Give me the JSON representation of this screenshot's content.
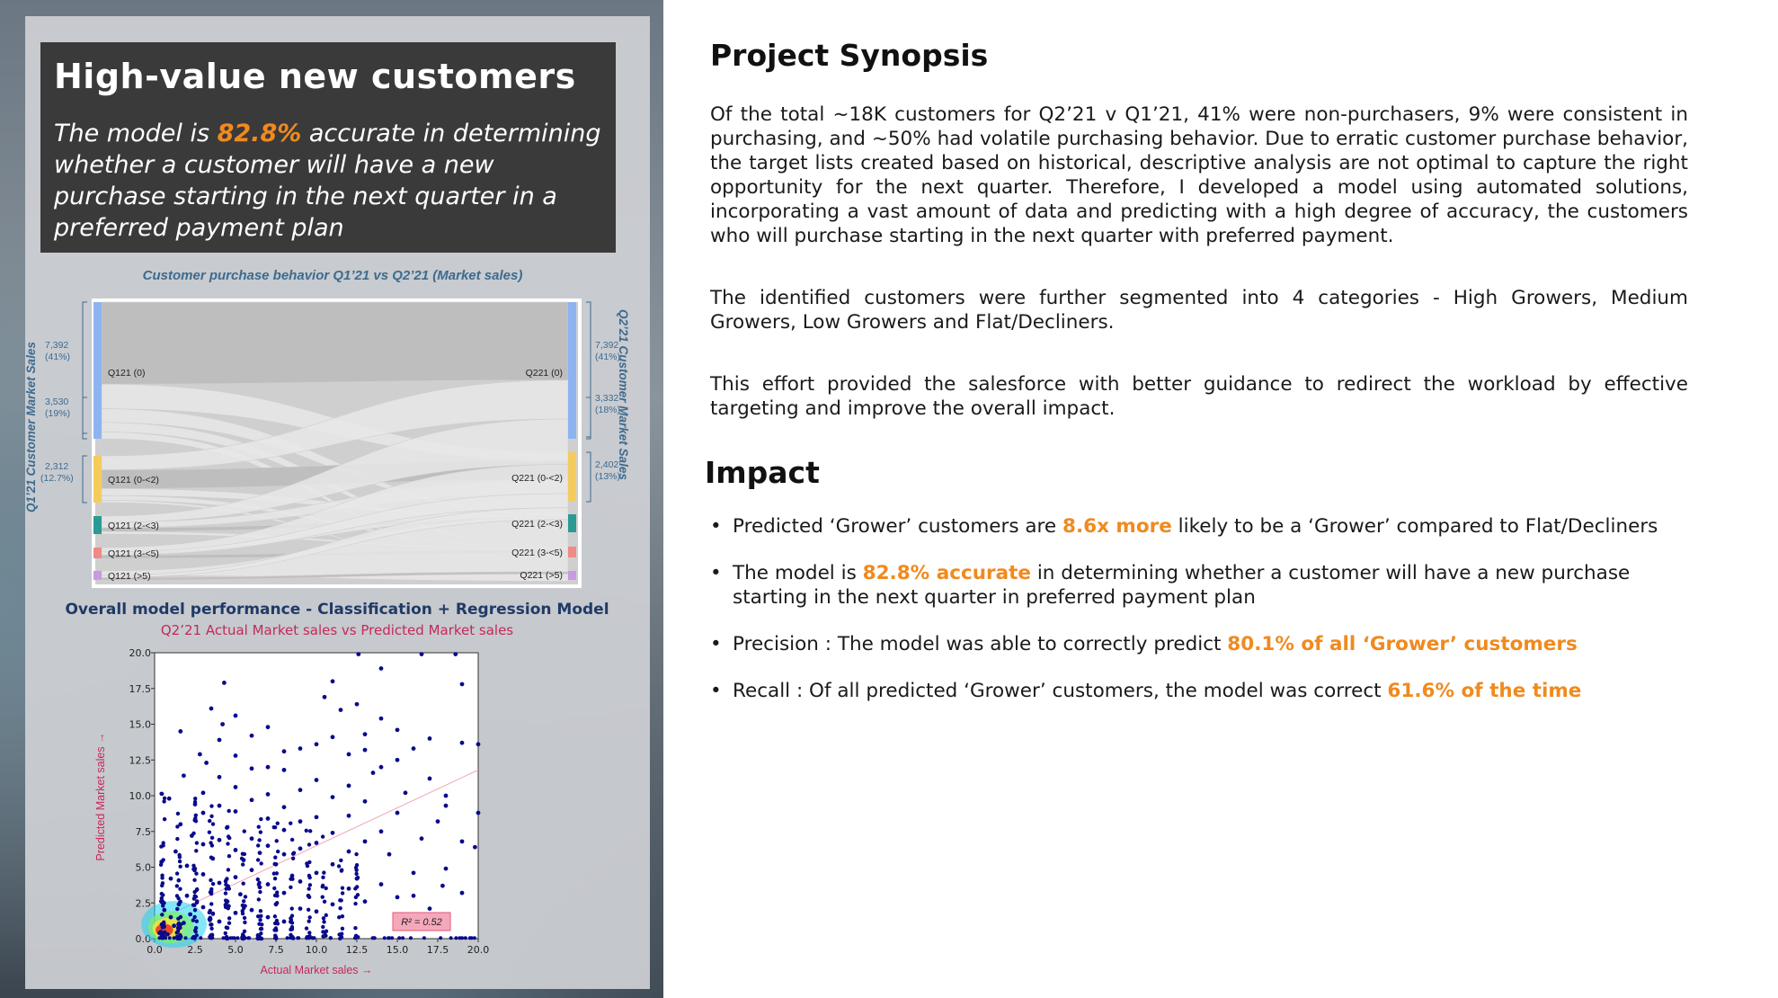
{
  "left": {
    "headline": {
      "title": "High-value new customers",
      "text_before": "The model is ",
      "highlight": "82.8%",
      "text_after": " accurate in determining whether a customer will have a new purchase starting in the next quarter in a preferred payment plan"
    },
    "sankey": {
      "title": "Customer purchase behavior Q1’21 vs Q2’21 (Market sales)",
      "left_axis": "Q1’21 Customer Market Sales",
      "right_axis": "Q2’21 Customer Market Sales",
      "left_nodes": [
        "Q121 (0)",
        "Q121 (0-<2)",
        "Q121 (2-<3)",
        "Q121 (3-<5)",
        "Q121 (>5)"
      ],
      "right_nodes": [
        "Q221 (0)",
        "Q221 (0-<2)",
        "Q221 (2-<3)",
        "Q221 (3-<5)",
        "Q221 (>5)"
      ],
      "left_annotations": [
        {
          "value": "7,392",
          "pct": "(41%)"
        },
        {
          "value": "3,530",
          "pct": "(19%)"
        },
        {
          "value": "2,312",
          "pct": "(12.7%)"
        }
      ],
      "right_annotations": [
        {
          "value": "7,392",
          "pct": "(41%)"
        },
        {
          "value": "3,332",
          "pct": "(18%)"
        },
        {
          "value": "2,402",
          "pct": "(13%)"
        }
      ],
      "node_colors": [
        "#8db4f0",
        "#f5cc5c",
        "#2a9a95",
        "#ef8a86",
        "#c89ae0"
      ]
    },
    "performance": {
      "title": "Overall model performance - Classification + Regression Model",
      "subtitle": "Q2’21 Actual Market sales vs Predicted Market sales"
    }
  },
  "chart_data": {
    "type": "scatter",
    "title": "Q2’21 Actual Market sales vs Predicted Market sales",
    "xlabel": "Actual Market sales →",
    "ylabel": "Predicted Market sales →",
    "xlim": [
      0,
      20
    ],
    "ylim": [
      0,
      20
    ],
    "x_ticks": [
      "0.0",
      "2.5",
      "5.0",
      "7.5",
      "10.0",
      "12.5",
      "15.0",
      "17.5",
      "20.0"
    ],
    "y_ticks": [
      "0.0",
      "2.5",
      "5.0",
      "7.5",
      "10.0",
      "12.5",
      "15.0",
      "17.5",
      "20.0"
    ],
    "annotation": "R² = 0.52",
    "trend_line": {
      "x": [
        0,
        20
      ],
      "y": [
        1.2,
        11.8
      ]
    },
    "series": [
      {
        "color": "#0a0a8c",
        "points": [
          [
            0.3,
            0.4
          ],
          [
            0.5,
            0.8
          ],
          [
            0.8,
            0.3
          ],
          [
            1.0,
            1.5
          ],
          [
            1.2,
            0.9
          ],
          [
            0.6,
            2.0
          ],
          [
            1.5,
            2.4
          ],
          [
            1.8,
            1.1
          ],
          [
            2.0,
            3.0
          ],
          [
            2.2,
            1.7
          ],
          [
            1.0,
            4.2
          ],
          [
            1.3,
            6.1
          ],
          [
            1.6,
            8.0
          ],
          [
            2.0,
            5.1
          ],
          [
            2.3,
            7.2
          ],
          [
            2.5,
            9.4
          ],
          [
            3.0,
            2.2
          ],
          [
            3.0,
            4.5
          ],
          [
            3.0,
            6.6
          ],
          [
            3.0,
            8.8
          ],
          [
            3.0,
            10.2
          ],
          [
            3.2,
            12.3
          ],
          [
            3.5,
            3.3
          ],
          [
            3.6,
            5.6
          ],
          [
            4.0,
            1.2
          ],
          [
            4.0,
            3.9
          ],
          [
            4.0,
            6.9
          ],
          [
            4.0,
            9.3
          ],
          [
            4.0,
            11.3
          ],
          [
            4.0,
            13.9
          ],
          [
            4.2,
            15.0
          ],
          [
            4.5,
            2.6
          ],
          [
            4.5,
            7.8
          ],
          [
            5.0,
            1.8
          ],
          [
            5.0,
            4.3
          ],
          [
            5.0,
            6.2
          ],
          [
            5.0,
            8.9
          ],
          [
            5.0,
            10.6
          ],
          [
            5.0,
            12.8
          ],
          [
            5.0,
            15.6
          ],
          [
            5.3,
            3.1
          ],
          [
            5.5,
            5.5
          ],
          [
            6.0,
            2.0
          ],
          [
            6.0,
            4.8
          ],
          [
            6.0,
            7.0
          ],
          [
            6.0,
            9.7
          ],
          [
            6.0,
            11.9
          ],
          [
            6.0,
            14.2
          ],
          [
            6.5,
            3.6
          ],
          [
            6.5,
            6.0
          ],
          [
            7.0,
            1.5
          ],
          [
            7.0,
            3.8
          ],
          [
            7.0,
            6.5
          ],
          [
            7.0,
            8.4
          ],
          [
            7.0,
            10.1
          ],
          [
            7.0,
            12.0
          ],
          [
            7.0,
            14.8
          ],
          [
            7.5,
            2.4
          ],
          [
            7.5,
            5.2
          ],
          [
            8.0,
            1.2
          ],
          [
            8.0,
            3.2
          ],
          [
            8.0,
            5.9
          ],
          [
            8.0,
            7.6
          ],
          [
            8.0,
            9.2
          ],
          [
            8.0,
            11.8
          ],
          [
            8.0,
            13.1
          ],
          [
            8.5,
            4.4
          ],
          [
            9.0,
            2.1
          ],
          [
            9.0,
            4.0
          ],
          [
            9.0,
            6.3
          ],
          [
            9.0,
            8.2
          ],
          [
            9.0,
            10.4
          ],
          [
            9.0,
            13.3
          ],
          [
            9.5,
            3.0
          ],
          [
            10.0,
            1.9
          ],
          [
            10.0,
            4.6
          ],
          [
            10.0,
            6.7
          ],
          [
            10.0,
            8.5
          ],
          [
            10.0,
            11.1
          ],
          [
            10.0,
            13.6
          ],
          [
            10.5,
            16.9
          ],
          [
            11.0,
            2.4
          ],
          [
            11.0,
            5.2
          ],
          [
            11.0,
            7.4
          ],
          [
            11.0,
            9.9
          ],
          [
            11.0,
            14.1
          ],
          [
            11.0,
            18.0
          ],
          [
            11.5,
            16.0
          ],
          [
            12.0,
            3.5
          ],
          [
            12.0,
            6.1
          ],
          [
            12.0,
            8.6
          ],
          [
            12.0,
            10.7
          ],
          [
            12.0,
            12.9
          ],
          [
            12.5,
            16.4
          ],
          [
            12.5,
            4.2
          ],
          [
            13.0,
            2.6
          ],
          [
            13.0,
            6.8
          ],
          [
            13.0,
            9.6
          ],
          [
            13.0,
            13.2
          ],
          [
            13.0,
            14.3
          ],
          [
            13.5,
            11.6
          ],
          [
            14.0,
            3.8
          ],
          [
            14.0,
            7.5
          ],
          [
            14.0,
            12.0
          ],
          [
            14.0,
            15.4
          ],
          [
            14.0,
            18.9
          ],
          [
            14.5,
            5.9
          ],
          [
            15.0,
            2.9
          ],
          [
            15.0,
            8.8
          ],
          [
            15.0,
            12.5
          ],
          [
            15.0,
            14.6
          ],
          [
            15.5,
            10.2
          ],
          [
            16.0,
            4.6
          ],
          [
            16.0,
            13.3
          ],
          [
            16.5,
            7.0
          ],
          [
            17.0,
            2.1
          ],
          [
            17.0,
            11.2
          ],
          [
            17.0,
            14.0
          ],
          [
            17.5,
            8.2
          ],
          [
            18.0,
            4.9
          ],
          [
            18.0,
            9.3
          ],
          [
            18.0,
            10.0
          ],
          [
            19.0,
            6.8
          ],
          [
            19.0,
            3.2
          ],
          [
            19.0,
            13.7
          ],
          [
            19.0,
            17.8
          ],
          [
            20.0,
            8.8
          ],
          [
            20.0,
            13.6
          ],
          [
            3.5,
            16.1
          ],
          [
            2.8,
            12.9
          ],
          [
            1.8,
            11.4
          ],
          [
            0.9,
            9.8
          ],
          [
            1.6,
            14.5
          ],
          [
            4.3,
            17.9
          ],
          [
            16.5,
            19.9
          ],
          [
            12.6,
            19.9
          ],
          [
            18.6,
            19.9
          ],
          [
            19.8,
            6.4
          ],
          [
            17.8,
            3.7
          ],
          [
            16.0,
            3.0
          ]
        ]
      }
    ]
  },
  "right": {
    "synopsis": {
      "heading": "Project Synopsis",
      "para1": "Of the total ~18K customers for Q2’21 v Q1’21, 41% were non-purchasers, 9% were consistent in purchasing, and ~50% had volatile purchasing behavior. Due to erratic customer purchase behavior, the target lists created based on historical, descriptive analysis are not optimal to capture the right opportunity for the next quarter. Therefore, I developed a model using automated solutions, incorporating a vast amount of data and predicting with a high degree of accuracy, the customers who will purchase starting in the next quarter with preferred payment.",
      "para2": "The identified customers were further segmented into 4 categories - High Growers, Medium Growers, Low Growers and  Flat/Decliners.",
      "para3": "This effort provided the salesforce with better guidance to redirect the workload by effective targeting and improve the overall impact."
    },
    "impact": {
      "heading": "Impact",
      "bullets": [
        {
          "before": "Predicted ‘Grower’ customers are ",
          "highlight": "8.6x more",
          "after": " likely to be a ‘Grower’ compared to Flat/Decliners"
        },
        {
          "before": "The model is ",
          "highlight": "82.8% accurate",
          "after": " in determining whether a customer will have a new purchase starting in the next quarter in preferred payment plan"
        },
        {
          "before": "Precision : The model was able to correctly predict ",
          "highlight": "80.1% of all ‘Grower’ customers",
          "after": ""
        },
        {
          "before": "Recall : Of all predicted ‘Grower’ customers, the model was correct ",
          "highlight": "61.6% of the time",
          "after": ""
        }
      ]
    }
  }
}
